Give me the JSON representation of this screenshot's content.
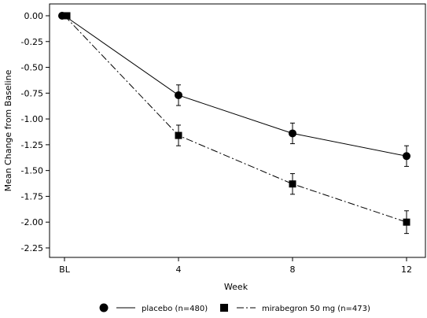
{
  "chart_data": {
    "type": "line",
    "title": "",
    "xlabel": "Week",
    "ylabel": "Mean Change from Baseline",
    "categories": [
      "BL",
      "4",
      "8",
      "12"
    ],
    "x": [
      0,
      4,
      8,
      12
    ],
    "ylim": [
      -2.25,
      0.0
    ],
    "yticks": [
      "0.00",
      "-0.25",
      "-0.50",
      "-0.75",
      "-1.00",
      "-1.25",
      "-1.50",
      "-1.75",
      "-2.00",
      "-2.25"
    ],
    "grid": false,
    "legend": "bottom",
    "series": [
      {
        "name": "placebo (n=480)",
        "marker": "circle",
        "line": "solid",
        "color": "#000000",
        "values": [
          0.0,
          -0.77,
          -1.14,
          -1.36
        ],
        "err": [
          0.0,
          0.1,
          0.1,
          0.1
        ]
      },
      {
        "name": "mirabegron 50 mg (n=473)",
        "marker": "square",
        "line": "dash-dot",
        "color": "#000000",
        "values": [
          0.0,
          -1.16,
          -1.63,
          -2.0
        ],
        "err": [
          0.0,
          0.1,
          0.1,
          0.11
        ]
      }
    ]
  }
}
